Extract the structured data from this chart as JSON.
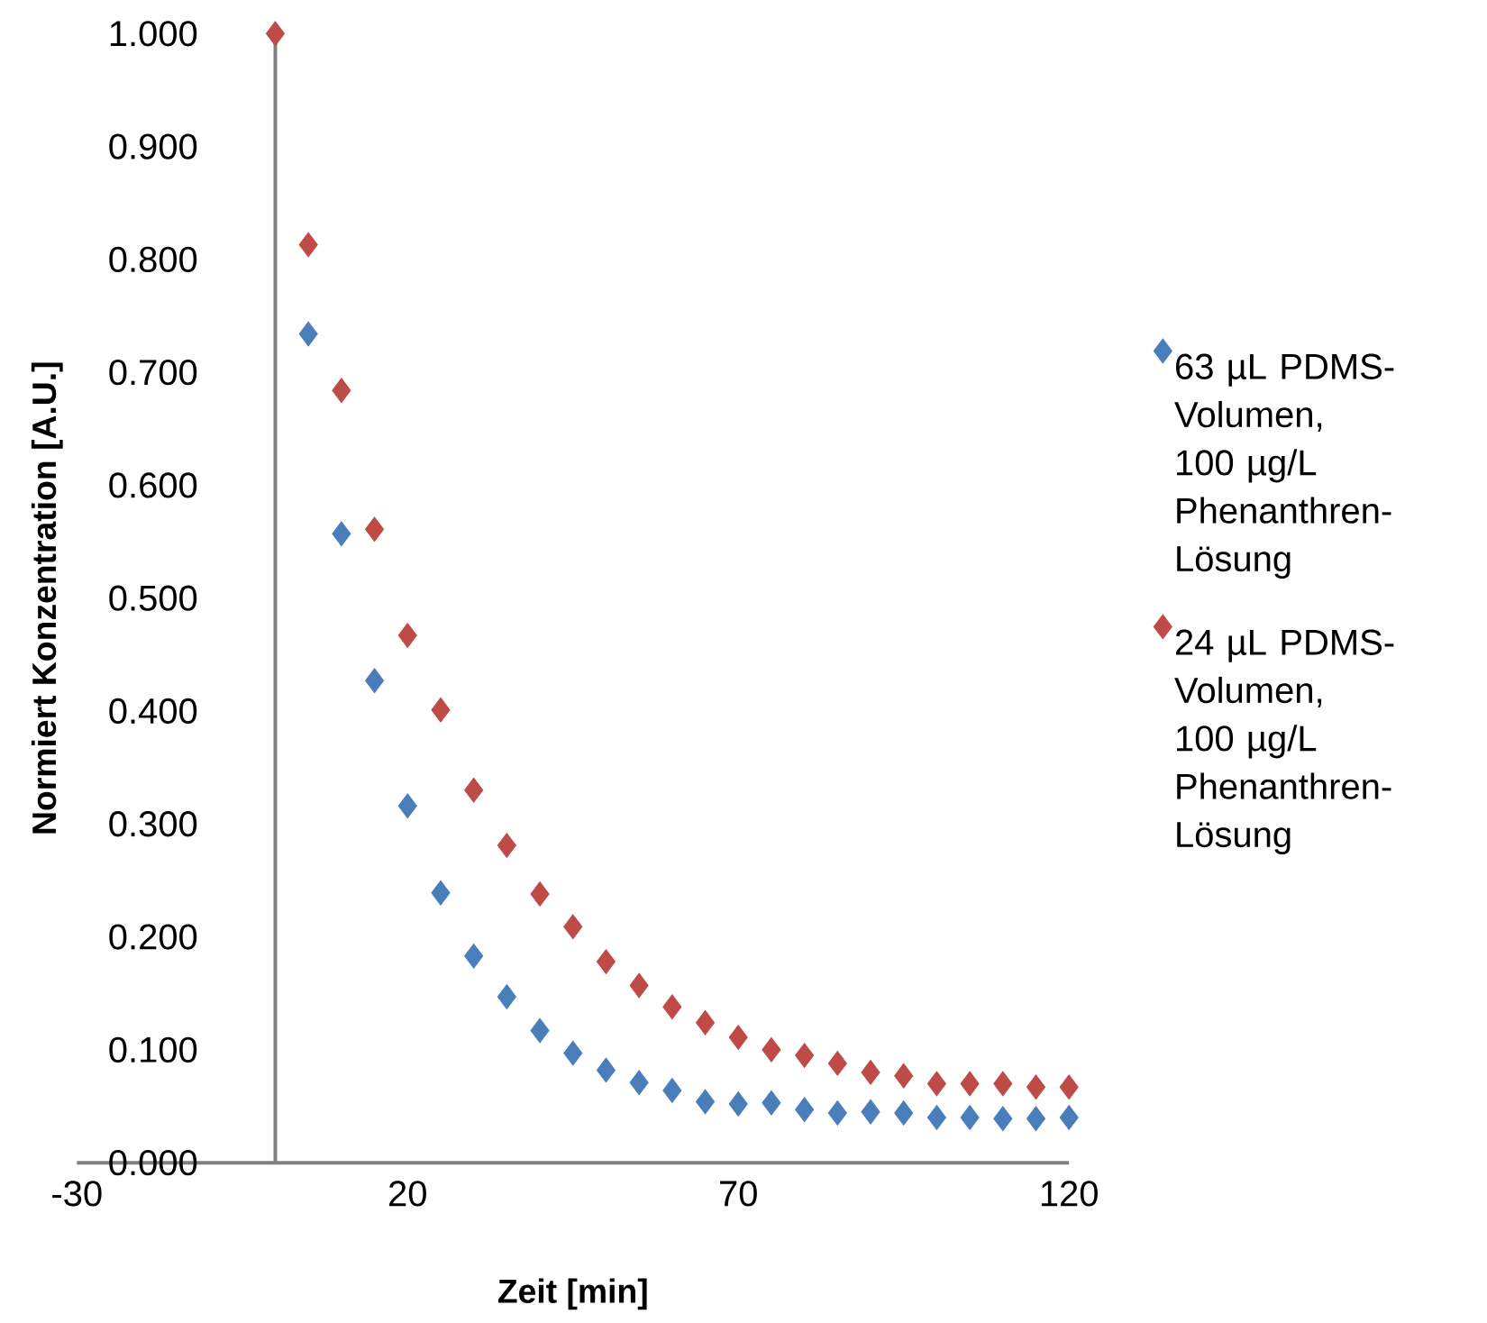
{
  "chart_data": {
    "type": "scatter",
    "xlabel": "Zeit [min]",
    "ylabel": "Normiert Konzentration [A.U.]",
    "xlim": [
      -30,
      120
    ],
    "xticks": [
      -30,
      20,
      70,
      120
    ],
    "ylim": [
      0,
      1
    ],
    "yticks": [
      {
        "value": 0,
        "label": "0.000"
      },
      {
        "value": 0.1,
        "label": "0.100"
      },
      {
        "value": 0.2,
        "label": "0.200"
      },
      {
        "value": 0.3,
        "label": "0.300"
      },
      {
        "value": 0.4,
        "label": "0.400"
      },
      {
        "value": 0.5,
        "label": "0.500"
      },
      {
        "value": 0.6,
        "label": "0.600"
      },
      {
        "value": 0.7,
        "label": "0.700"
      },
      {
        "value": 0.8,
        "label": "0.800"
      },
      {
        "value": 0.9,
        "label": "0.900"
      },
      {
        "value": 1,
        "label": "1.000"
      }
    ],
    "marker": "diamond",
    "legend": "right",
    "series": [
      {
        "name": "63 µL PDMS-Volumen, 100 µg/L Phenanthren-Lösung",
        "color": "#4a7ebb",
        "x": [
          5,
          10,
          15,
          20,
          25,
          30,
          35,
          40,
          45,
          50,
          55,
          60,
          65,
          70,
          75,
          80,
          85,
          90,
          95,
          100,
          105,
          110,
          115,
          120
        ],
        "values": [
          0.734,
          0.557,
          0.427,
          0.316,
          0.239,
          0.183,
          0.147,
          0.117,
          0.097,
          0.082,
          0.071,
          0.064,
          0.054,
          0.052,
          0.053,
          0.047,
          0.044,
          0.045,
          0.044,
          0.04,
          0.04,
          0.039,
          0.039,
          0.04
        ]
      },
      {
        "name": "24 µL PDMS-Volumen, 100 µg/L Phenanthren-Lösung",
        "color": "#be4b48",
        "x": [
          0,
          5,
          10,
          15,
          20,
          25,
          30,
          35,
          40,
          45,
          50,
          55,
          60,
          65,
          70,
          75,
          80,
          85,
          90,
          95,
          100,
          105,
          110,
          115,
          120
        ],
        "values": [
          1.0,
          0.813,
          0.684,
          0.561,
          0.467,
          0.401,
          0.33,
          0.281,
          0.238,
          0.209,
          0.178,
          0.157,
          0.138,
          0.124,
          0.111,
          0.1,
          0.095,
          0.088,
          0.08,
          0.077,
          0.07,
          0.07,
          0.07,
          0.067,
          0.067
        ]
      }
    ]
  }
}
